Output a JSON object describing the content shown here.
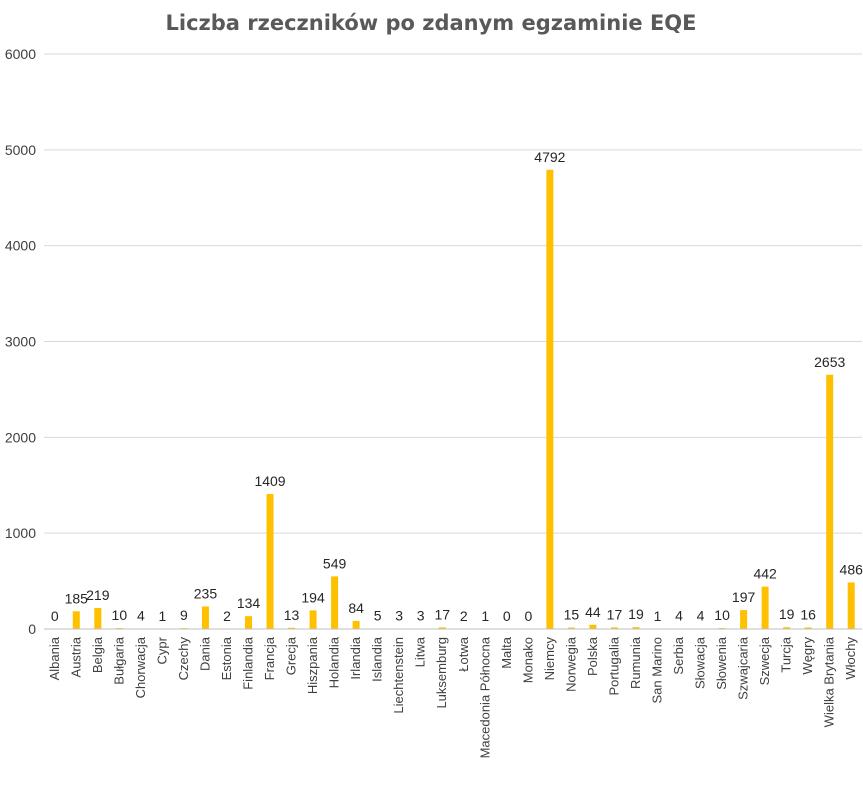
{
  "chart_data": {
    "type": "bar",
    "title": "Liczba rzeczników po zdanym egzaminie EQE",
    "xlabel": "",
    "ylabel": "",
    "ylim": [
      0,
      6000
    ],
    "yticks": [
      0,
      1000,
      2000,
      3000,
      4000,
      5000,
      6000
    ],
    "grid": true,
    "legend": "none",
    "bar_color": "#FFC000",
    "label_color": "#262626",
    "highlight_label_color": "#FF0000",
    "highlight_category": "Polska",
    "categories": [
      "Albania",
      "Austria",
      "Belgia",
      "Bułgaria",
      "Chorwacja",
      "Cypr",
      "Czechy",
      "Dania",
      "Estonia",
      "Finlandia",
      "Francja",
      "Grecja",
      "Hiszpania",
      "Holandia",
      "Irlandia",
      "Islandia",
      "Liechtenstein",
      "Litwa",
      "Luksemburg",
      "Łotwa",
      "Macedonia Północna",
      "Malta",
      "Monako",
      "Niemcy",
      "Norwegia",
      "Polska",
      "Portugalia",
      "Rumunia",
      "San Marino",
      "Serbia",
      "Słowacja",
      "Słowenia",
      "Szwajcaria",
      "Szwecja",
      "Turcja",
      "Węgry",
      "Wielka Brytania",
      "Włochy"
    ],
    "values": [
      0,
      185,
      219,
      10,
      4,
      1,
      9,
      235,
      2,
      134,
      1409,
      13,
      194,
      549,
      84,
      5,
      3,
      3,
      17,
      2,
      1,
      0,
      0,
      4792,
      15,
      44,
      17,
      19,
      1,
      4,
      4,
      10,
      197,
      442,
      19,
      16,
      2653,
      486
    ]
  }
}
